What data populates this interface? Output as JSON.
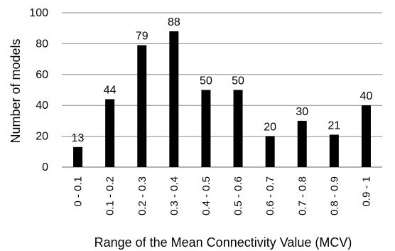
{
  "chart_data": {
    "type": "bar",
    "title": "",
    "xlabel": "Range of the Mean Connectivity Value (MCV)",
    "ylabel": "Number of models",
    "categories": [
      "0 - 0.1",
      "0.1 - 0.2",
      "0.2 - 0.3",
      "0.3 - 0.4",
      "0.4 - 0.5",
      "0.5 - 0.6",
      "0.6 - 0.7",
      "0.7 - 0.8",
      "0.8 - 0.9",
      "0.9 - 1"
    ],
    "values": [
      13,
      44,
      79,
      88,
      50,
      50,
      20,
      30,
      21,
      40
    ],
    "ylim": [
      0,
      100
    ],
    "yticks": [
      0,
      20,
      40,
      60,
      80,
      100
    ],
    "grid": true,
    "legend": "none",
    "bar_color": "#000000",
    "grid_color": "#8c8c8c"
  }
}
